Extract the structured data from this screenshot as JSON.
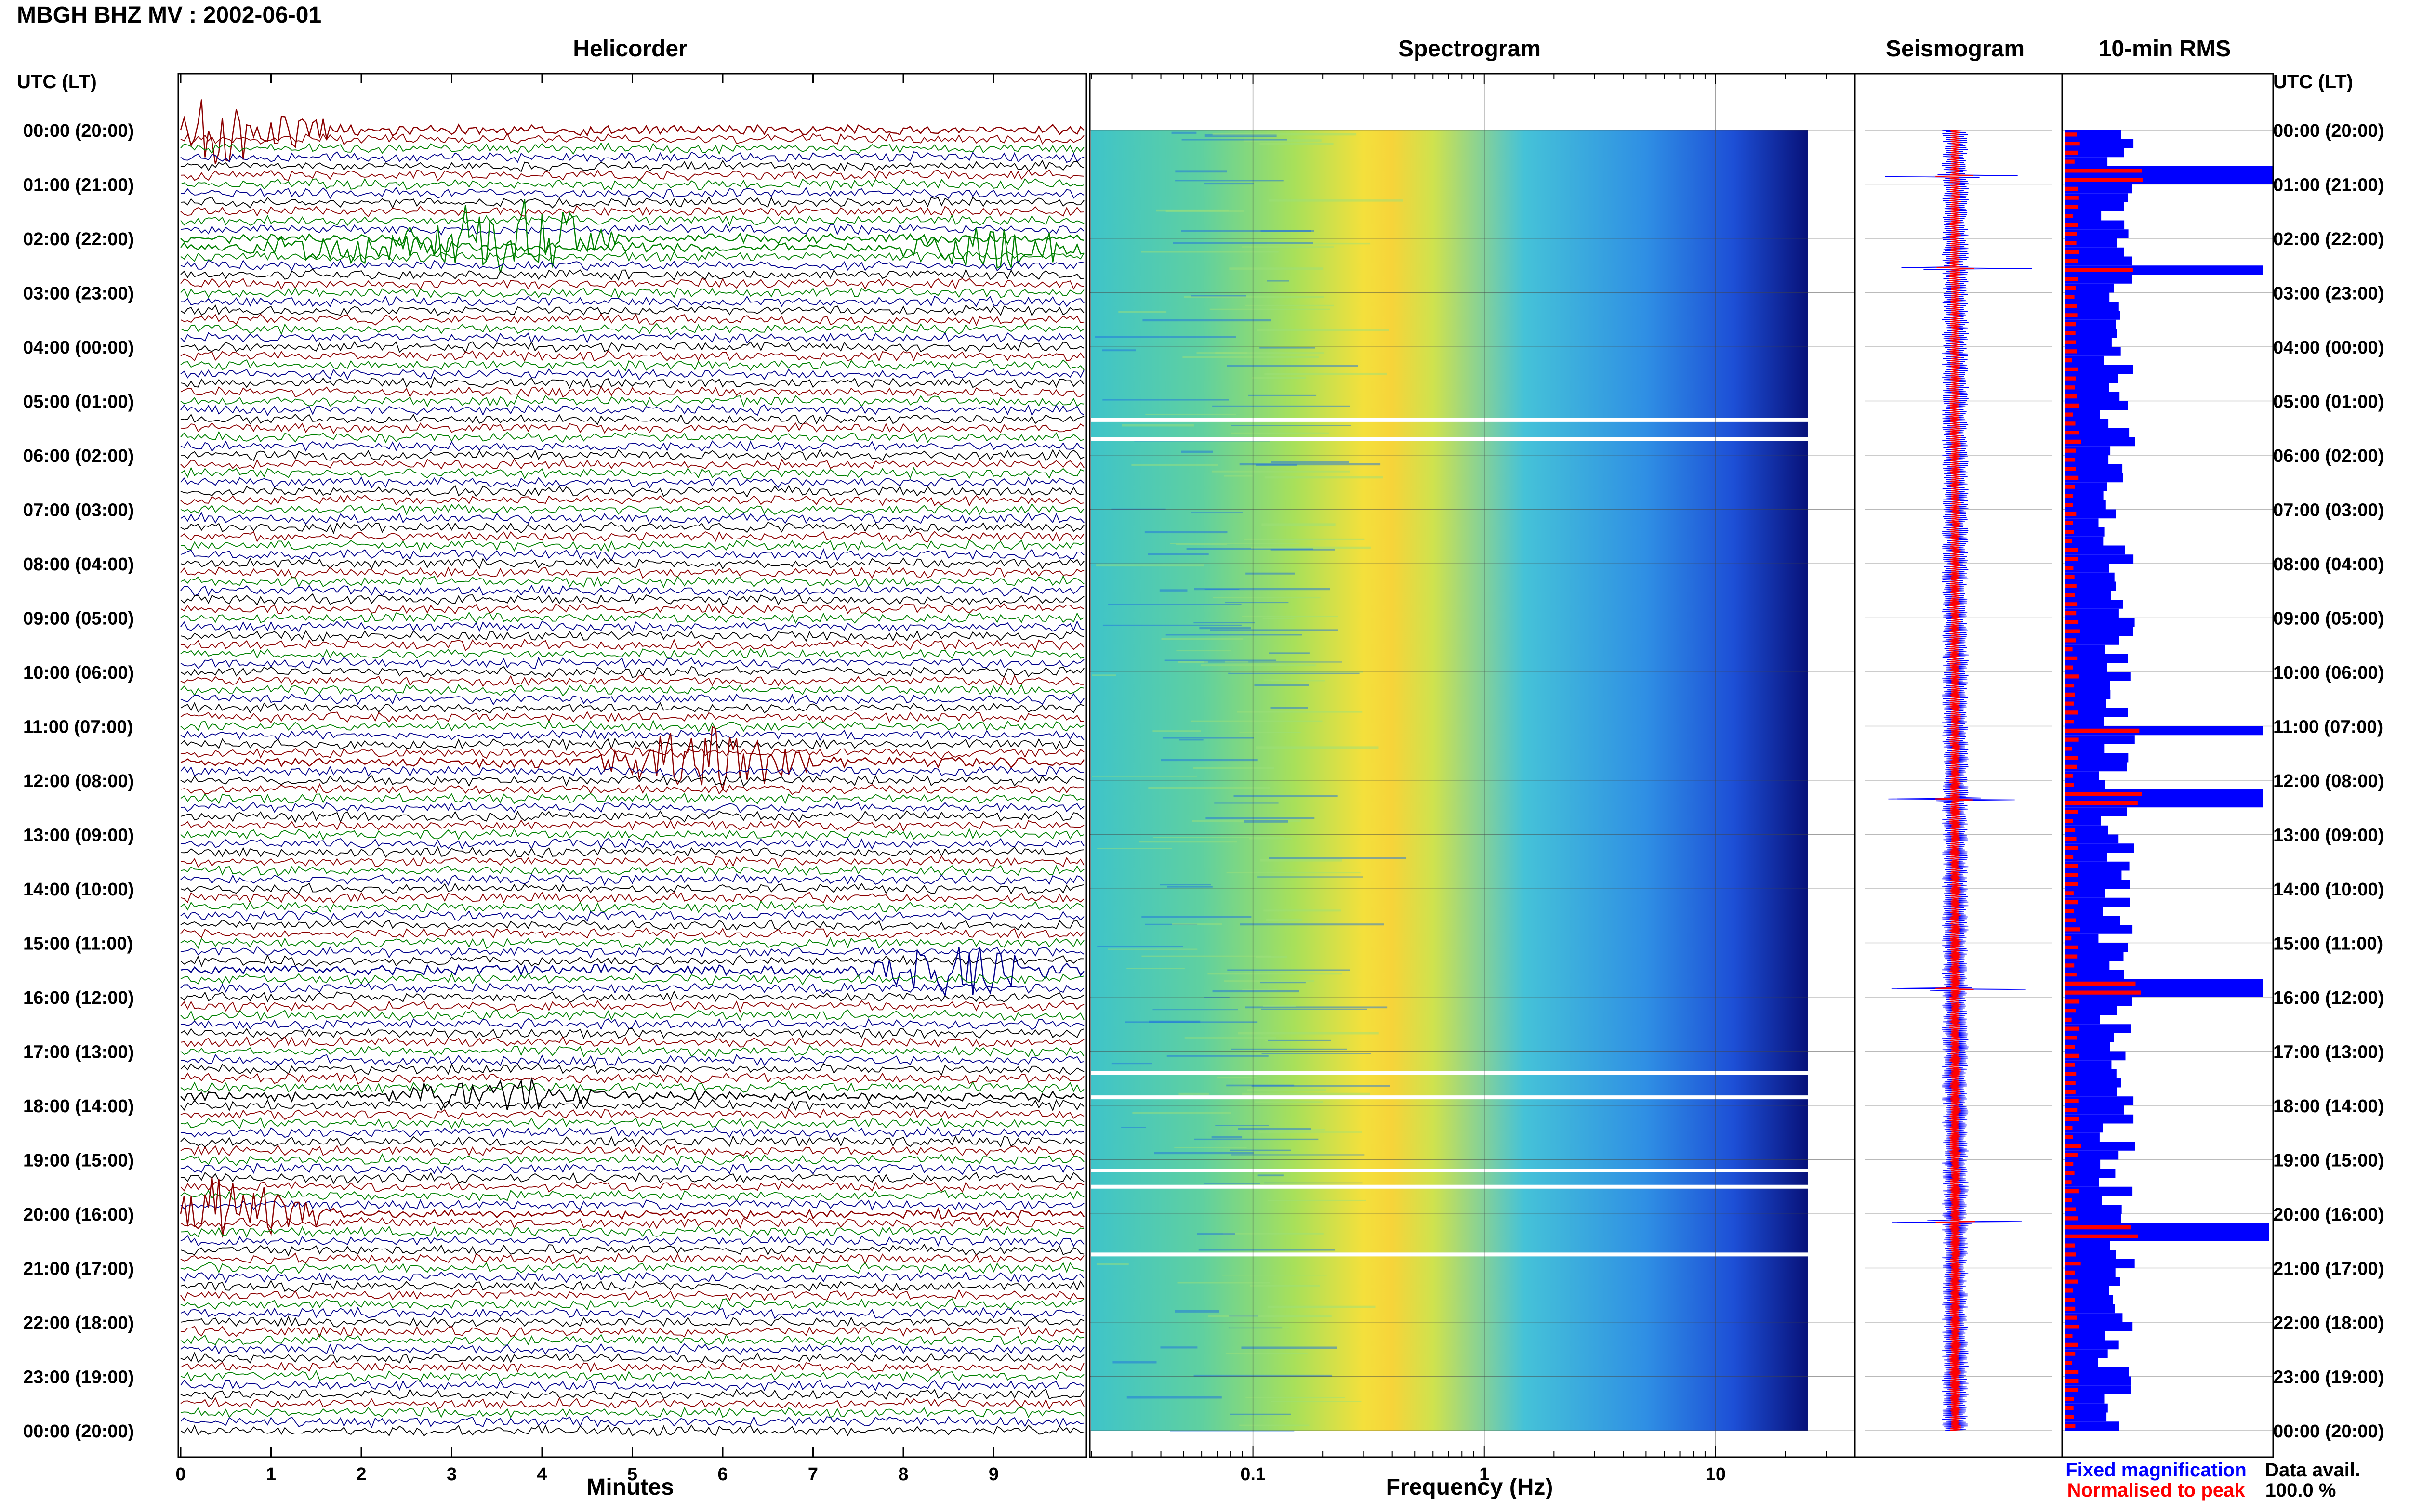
{
  "header": {
    "title": "MBGH BHZ MV : 2002-06-01"
  },
  "panels": {
    "helicorder": "Helicorder",
    "spectrogram": "Spectrogram",
    "seismogram": "Seismogram",
    "rms": "10-min RMS"
  },
  "axes": {
    "time_header": "UTC (LT)",
    "minutes_label": "Minutes",
    "frequency_label": "Frequency (Hz)"
  },
  "legend": {
    "fixed": "Fixed magnification",
    "normalised": "Normalised to peak",
    "data_avail_label": "Data avail.",
    "data_avail_value": "100.0 %"
  },
  "colors": {
    "trace_cycle": [
      "#000000",
      "#8b0000",
      "#008000",
      "#00008b"
    ],
    "fixed": "#0000ff",
    "normalised": "#ff0000"
  },
  "chart_data": [
    {
      "type": "helicorder",
      "title": "Helicorder",
      "xlabel": "Minutes",
      "xlim": [
        0,
        10
      ],
      "x_ticks": [
        "0",
        "1",
        "2",
        "3",
        "4",
        "5",
        "6",
        "7",
        "8",
        "9"
      ],
      "y_ticks": [
        "00:00 (20:00)",
        "01:00 (21:00)",
        "02:00 (22:00)",
        "03:00 (23:00)",
        "04:00 (00:00)",
        "05:00 (01:00)",
        "06:00 (02:00)",
        "07:00 (03:00)",
        "08:00 (04:00)",
        "09:00 (05:00)",
        "10:00 (06:00)",
        "11:00 (07:00)",
        "12:00 (08:00)",
        "13:00 (09:00)",
        "14:00 (10:00)",
        "15:00 (11:00)",
        "16:00 (12:00)",
        "17:00 (13:00)",
        "18:00 (14:00)",
        "19:00 (15:00)",
        "20:00 (16:00)",
        "21:00 (17:00)",
        "22:00 (18:00)",
        "23:00 (19:00)",
        "00:00 (20:00)"
      ],
      "traces_per_hour": 6,
      "events": [
        {
          "hour": 0.0,
          "minute": 0.5,
          "amp": 4,
          "color": "#8b0000"
        },
        {
          "hour": 2.0,
          "minute": 3.6,
          "amp": 5,
          "color": "#008000"
        },
        {
          "hour": 2.17,
          "minute": 1.9,
          "amp": 2,
          "color": "#008000"
        },
        {
          "hour": 2.17,
          "minute": 9.0,
          "amp": 2,
          "color": "#008000"
        },
        {
          "hour": 11.67,
          "minute": 5.8,
          "amp": 4,
          "color": "#8b0000"
        },
        {
          "hour": 15.5,
          "minute": 8.7,
          "amp": 3,
          "color": "#00008b"
        },
        {
          "hour": 17.83,
          "minute": 3.5,
          "amp": 2,
          "color": "#000000"
        },
        {
          "hour": 20.0,
          "minute": 0.5,
          "amp": 4,
          "color": "#8b0000"
        }
      ]
    },
    {
      "type": "heatmap",
      "title": "Spectrogram",
      "xlabel": "Frequency (Hz)",
      "xscale": "log",
      "x_ticks": [
        "0.1",
        "1",
        "10"
      ],
      "xlim": [
        0.02,
        40
      ],
      "data_max_hz": 25,
      "peak_band_hz": [
        0.25,
        0.5
      ],
      "gap_hours": [
        5.35,
        5.7,
        17.4,
        17.85,
        19.2,
        19.5,
        20.75
      ]
    },
    {
      "type": "line",
      "title": "Seismogram",
      "series": [
        {
          "name": "Fixed magnification",
          "color": "#0000ff"
        },
        {
          "name": "Normalised to peak",
          "color": "#ff0000"
        }
      ],
      "spike_hours": [
        0.85,
        2.55,
        12.35,
        15.85,
        20.15
      ]
    },
    {
      "type": "bar",
      "title": "10-min RMS",
      "orientation": "horizontal",
      "bins_per_hour": 6,
      "series": [
        {
          "name": "Fixed magnification",
          "color": "#0000ff"
        },
        {
          "name": "Normalised to peak",
          "color": "#ff0000"
        }
      ],
      "peaks": [
        {
          "hour": 0.75,
          "value": 1.0
        },
        {
          "hour": 2.5,
          "value": 0.95
        },
        {
          "hour": 11.0,
          "value": 0.95
        },
        {
          "hour": 12.25,
          "value": 0.95
        },
        {
          "hour": 15.75,
          "value": 0.95
        },
        {
          "hour": 20.25,
          "value": 0.98
        }
      ]
    }
  ]
}
